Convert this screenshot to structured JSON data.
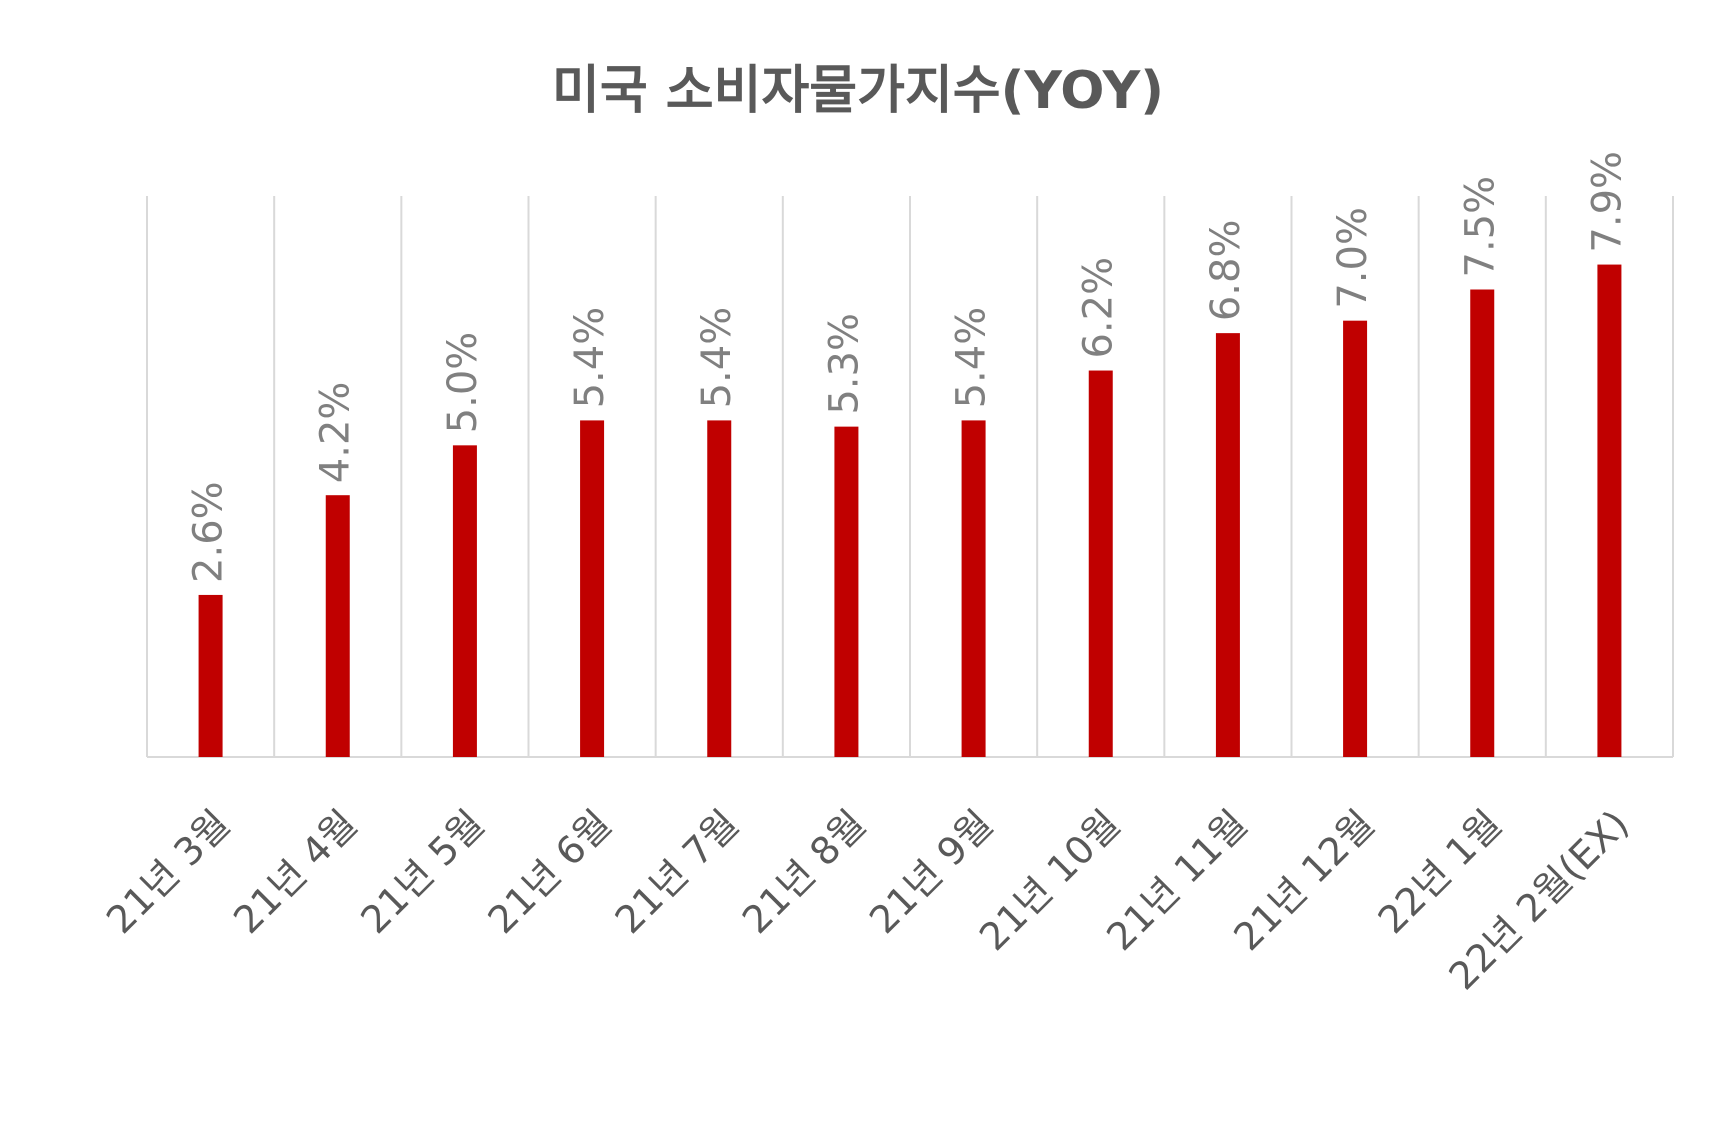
{
  "chart_data": {
    "type": "bar",
    "title": "미국 소비자물가지수(YOY)",
    "categories": [
      "21년 3월",
      "21년 4월",
      "21년 5월",
      "21년 6월",
      "21년 7월",
      "21년 8월",
      "21년 9월",
      "21년 10월",
      "21년 11월",
      "21년 12월",
      "22년 1월",
      "22년 2월(EX)"
    ],
    "values": [
      2.6,
      4.2,
      5.0,
      5.4,
      5.4,
      5.3,
      5.4,
      6.2,
      6.8,
      7.0,
      7.5,
      7.9
    ],
    "value_labels": [
      "2.6%",
      "4.2%",
      "5.0%",
      "5.4%",
      "5.4%",
      "5.3%",
      "5.4%",
      "6.2%",
      "6.8%",
      "7.0%",
      "7.5%",
      "7.9%"
    ],
    "color": "#c00000",
    "ylim": [
      0,
      9
    ],
    "grid": true
  }
}
